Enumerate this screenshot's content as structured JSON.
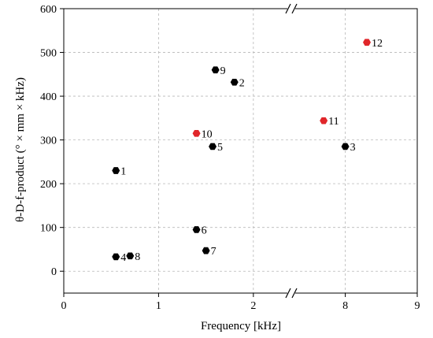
{
  "chart_data": {
    "type": "scatter",
    "xlabel": "Frequency [kHz]",
    "ylabel": "θ-D-f-product (° × mm × kHz)",
    "x_ticks": [
      "0",
      "1",
      "2",
      "8",
      "9"
    ],
    "x_segments": [
      {
        "data_range": [
          0,
          2.4
        ],
        "ticks": [
          0,
          1,
          2
        ]
      },
      {
        "data_range": [
          7.25,
          9
        ],
        "ticks": [
          8,
          9
        ]
      }
    ],
    "axis_break": "between 2 and 8 on x-axis",
    "ylim": [
      -50,
      600
    ],
    "y_ticks": [
      0,
      100,
      200,
      300,
      400,
      500,
      600
    ],
    "grid": true,
    "series": [
      {
        "color": "#000000",
        "points": [
          {
            "label": "1",
            "x": 0.55,
            "y": 230
          },
          {
            "label": "2",
            "x": 1.8,
            "y": 432
          },
          {
            "label": "3",
            "x": 8.0,
            "y": 285
          },
          {
            "label": "4",
            "x": 0.55,
            "y": 33
          },
          {
            "label": "5",
            "x": 1.57,
            "y": 285
          },
          {
            "label": "6",
            "x": 1.4,
            "y": 95
          },
          {
            "label": "7",
            "x": 1.5,
            "y": 47
          },
          {
            "label": "8",
            "x": 0.7,
            "y": 35
          },
          {
            "label": "9",
            "x": 1.6,
            "y": 460
          }
        ]
      },
      {
        "color": "#e0262a",
        "points": [
          {
            "label": "10",
            "x": 1.4,
            "y": 315
          },
          {
            "label": "11",
            "x": 7.7,
            "y": 344
          },
          {
            "label": "12",
            "x": 8.3,
            "y": 523
          }
        ]
      }
    ]
  }
}
